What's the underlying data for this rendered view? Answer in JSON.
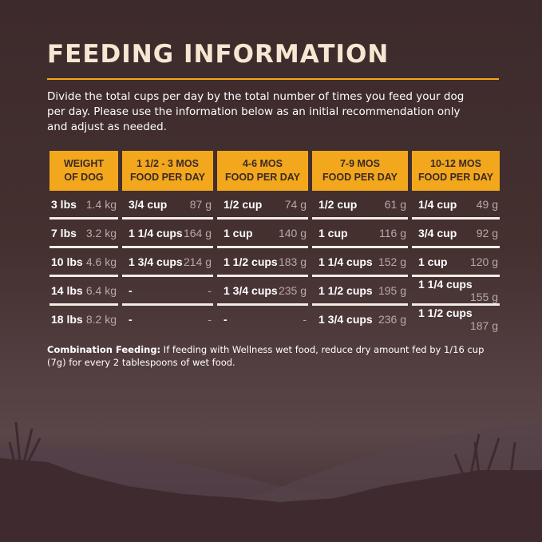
{
  "title": "FEEDING INFORMATION",
  "intro": "Divide the total cups per day by the total number of times you feed your dog per day. Please use the information below as an initial recommendation only and adjust as needed.",
  "table": {
    "headers": [
      [
        "WEIGHT",
        "OF DOG"
      ],
      [
        "1 1/2 - 3 MOS",
        "FOOD PER DAY"
      ],
      [
        "4-6 MOS",
        "FOOD PER DAY"
      ],
      [
        "7-9 MOS",
        "FOOD PER DAY"
      ],
      [
        "10-12 MOS",
        "FOOD PER DAY"
      ]
    ],
    "rows": [
      [
        [
          "3 lbs",
          "1.4 kg"
        ],
        [
          "3/4 cup",
          "87 g"
        ],
        [
          "1/2 cup",
          "74 g"
        ],
        [
          "1/2 cup",
          "61 g"
        ],
        [
          "1/4 cup",
          "49 g"
        ]
      ],
      [
        [
          "7 lbs",
          "3.2 kg"
        ],
        [
          "1 1/4 cups",
          "164 g"
        ],
        [
          "1 cup",
          "140 g"
        ],
        [
          "1 cup",
          "116 g"
        ],
        [
          "3/4 cup",
          "92 g"
        ]
      ],
      [
        [
          "10 lbs",
          "4.6 kg"
        ],
        [
          "1 3/4 cups",
          "214 g"
        ],
        [
          "1 1/2 cups",
          "183 g"
        ],
        [
          "1 1/4 cups",
          "152 g"
        ],
        [
          "1 cup",
          "120 g"
        ]
      ],
      [
        [
          "14 lbs",
          "6.4 kg"
        ],
        [
          "-",
          "-"
        ],
        [
          "1 3/4 cups",
          "235 g"
        ],
        [
          "1 1/2 cups",
          "195 g"
        ],
        [
          "1 1/4 cups",
          "155 g"
        ]
      ],
      [
        [
          "18 lbs",
          "8.2 kg"
        ],
        [
          "-",
          "-"
        ],
        [
          "-",
          "-"
        ],
        [
          "1 3/4 cups",
          "236 g"
        ],
        [
          "1 1/2 cups",
          "187 g"
        ]
      ]
    ]
  },
  "combo": {
    "label": "Combination Feeding:",
    "text": " If feeding with Wellness wet food, reduce dry amount fed by 1/16 cup (7g) for every 2 tablespoons of wet food."
  },
  "colors": {
    "accent": "#f2a71c",
    "background": "#3d2a2c"
  }
}
